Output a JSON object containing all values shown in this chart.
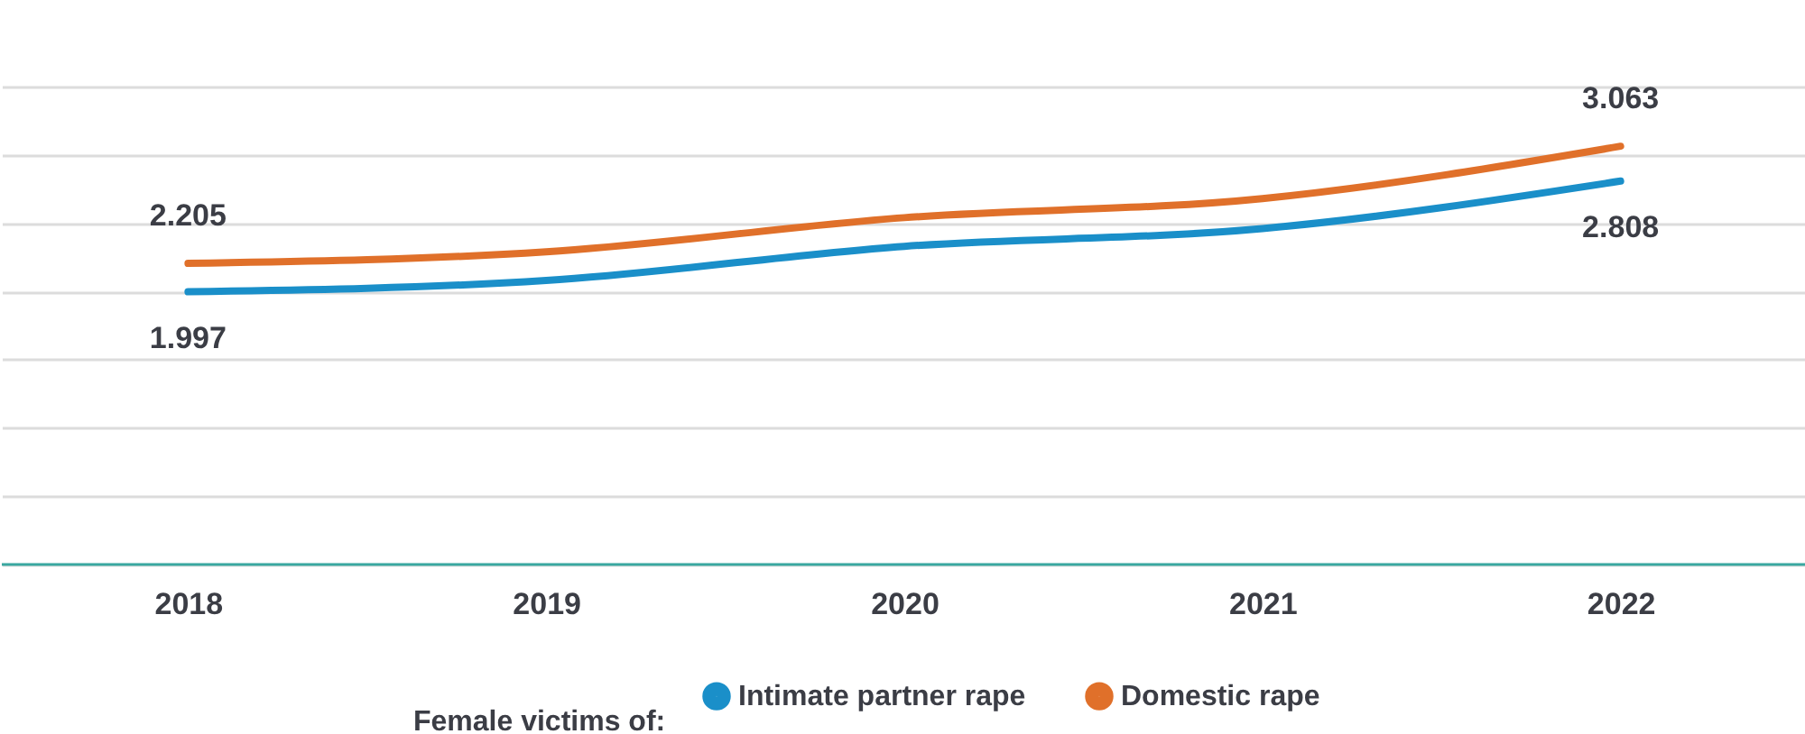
{
  "chart_data": {
    "type": "line",
    "categories": [
      "2018",
      "2019",
      "2020",
      "2021",
      "2022"
    ],
    "legend_title": "Female victims of:",
    "series": [
      {
        "name": "Intimate partner rape",
        "color": "#1a8fc9",
        "values": [
          1.997,
          2.08,
          2.33,
          2.46,
          2.808
        ],
        "value_labels": [
          "1.997",
          null,
          null,
          null,
          "2.808"
        ]
      },
      {
        "name": "Domestic rape",
        "color": "#e0702a",
        "values": [
          2.205,
          2.29,
          2.54,
          2.68,
          3.063
        ],
        "value_labels": [
          "2.205",
          null,
          null,
          null,
          "3.063"
        ]
      }
    ],
    "ylim": [
      0,
      3.5
    ],
    "yticks": [
      {
        "value": 0,
        "label": null
      },
      {
        "value": 0.5,
        "label": null
      },
      {
        "value": 1,
        "label": null
      },
      {
        "value": 1.5,
        "label": null
      },
      {
        "value": 2,
        "label": null
      },
      {
        "value": 2.5,
        "label": null
      },
      {
        "value": 3,
        "label": null
      },
      {
        "value": 3.5,
        "label": null
      }
    ],
    "tick_labels": "x",
    "grid": "y",
    "legend": "bottom",
    "marker": "none",
    "line_style": "solid"
  }
}
